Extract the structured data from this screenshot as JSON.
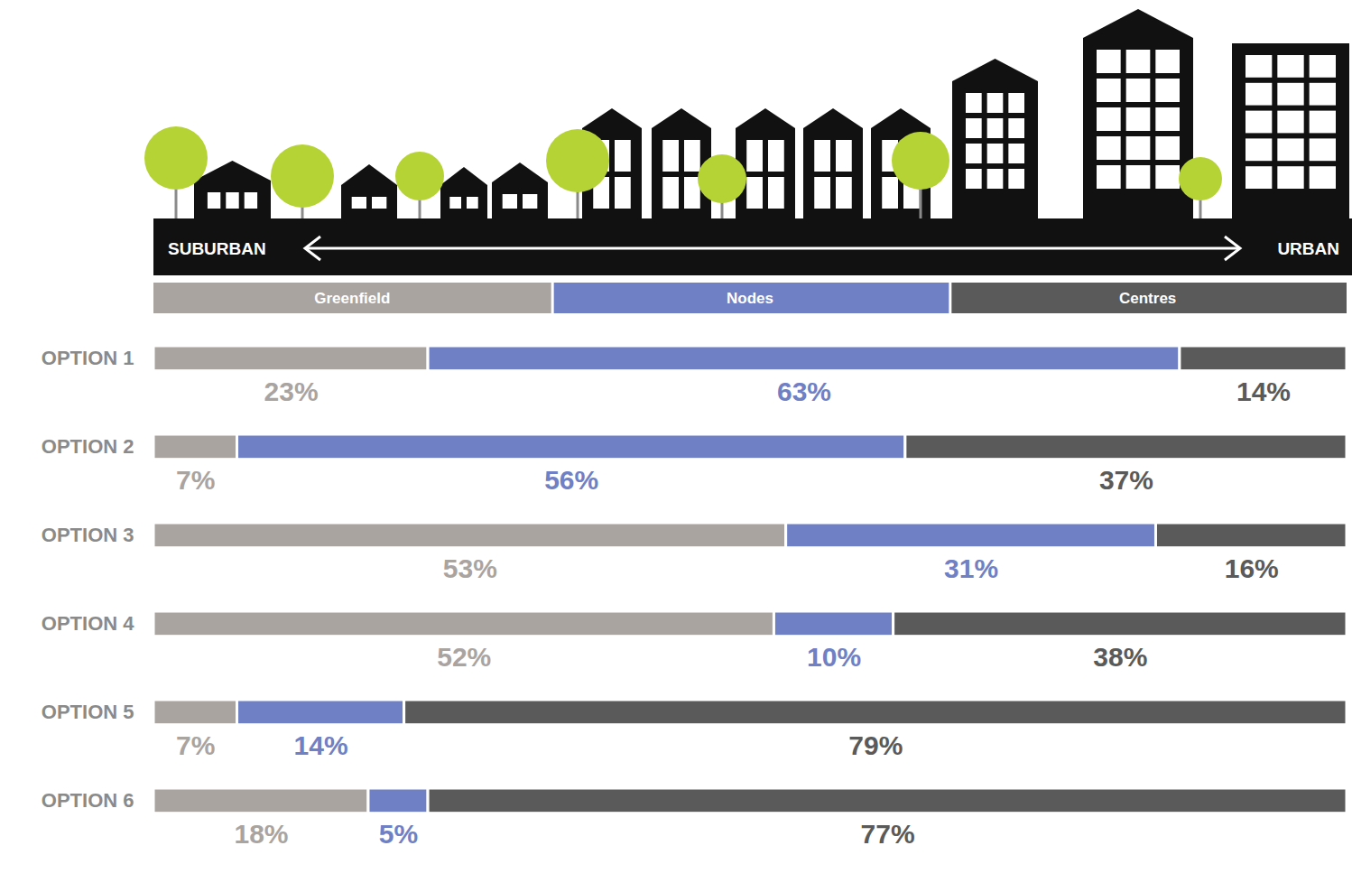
{
  "chart_data": {
    "type": "bar",
    "orientation": "horizontal",
    "stacked": true,
    "data_labels": true,
    "tick_labels": "y",
    "legend": "top",
    "annotations": [
      "SUBURBAN",
      "URBAN"
    ],
    "categories": [
      "OPTION 1",
      "OPTION 2",
      "OPTION 3",
      "OPTION 4",
      "OPTION 5",
      "OPTION 6"
    ],
    "xlim": [
      0,
      100
    ],
    "series": [
      {
        "name": "Greenfield",
        "color": "#aaa4a1",
        "values": [
          23,
          7,
          53,
          52,
          7,
          18
        ],
        "value_labels": [
          "23%",
          "7%",
          "53%",
          "52%",
          "7%",
          "18%"
        ]
      },
      {
        "name": "Nodes",
        "color": "#6f80c4",
        "values": [
          63,
          56,
          31,
          10,
          14,
          5
        ],
        "value_labels": [
          "63%",
          "56%",
          "31%",
          "10%",
          "14%",
          "5%"
        ]
      },
      {
        "name": "Centres",
        "color": "#5a5a5a",
        "values": [
          14,
          37,
          16,
          38,
          79,
          77
        ],
        "value_labels": [
          "14%",
          "37%",
          "16%",
          "38%",
          "79%",
          "77%"
        ]
      }
    ]
  }
}
